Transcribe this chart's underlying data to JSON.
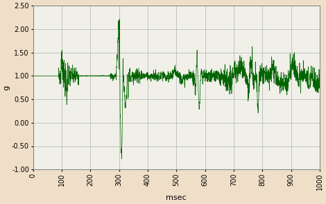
{
  "xlabel": "msec",
  "ylabel": "g",
  "xlim": [
    0,
    1000
  ],
  "ylim": [
    -1.0,
    2.5
  ],
  "yticks": [
    -1.0,
    -0.5,
    0.0,
    0.5,
    1.0,
    1.5,
    2.0,
    2.5
  ],
  "xticks": [
    0,
    100,
    200,
    300,
    400,
    500,
    600,
    700,
    800,
    900,
    1000
  ],
  "line_color": "#006400",
  "bg_color": "#f0dfc8",
  "plot_bg_color": "#f0f0e8",
  "grid_color": "#b0b0b0",
  "seed": 7
}
